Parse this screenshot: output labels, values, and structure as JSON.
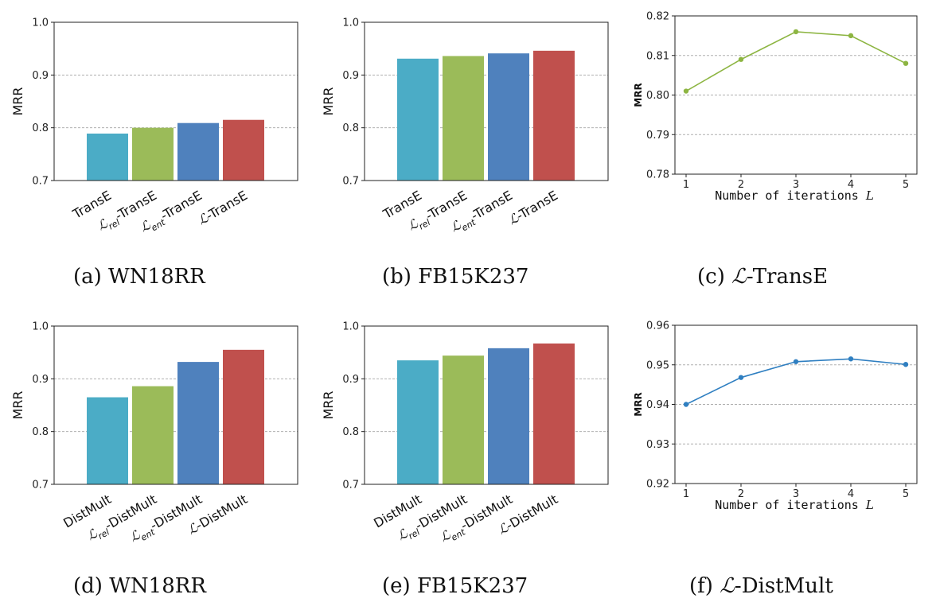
{
  "colors": {
    "cyan": "#4bacc6",
    "green": "#9bbb59",
    "blue": "#4f81bd",
    "red": "#c0504d",
    "line_green": "#8db542",
    "line_blue": "#2f7fc1"
  },
  "chart_data": [
    {
      "type": "bar",
      "caption": "(a) WN18RR",
      "ylabel": "MRR",
      "ylim": [
        0.7,
        1.0
      ],
      "yticks": [
        "0.7",
        "0.8",
        "0.9",
        "1.0"
      ],
      "grid": true,
      "categories": [
        "TransE",
        "ℒ_rel-TransE",
        "ℒ_ent-TransE",
        "ℒ-TransE"
      ],
      "values": [
        0.789,
        0.8,
        0.809,
        0.815
      ]
    },
    {
      "type": "bar",
      "caption": "(b) FB15K237",
      "ylabel": "MRR",
      "ylim": [
        0.7,
        1.0
      ],
      "yticks": [
        "0.7",
        "0.8",
        "0.9",
        "1.0"
      ],
      "grid": true,
      "categories": [
        "TransE",
        "ℒ_rel-TransE",
        "ℒ_ent-TransE",
        "ℒ-TransE"
      ],
      "values": [
        0.931,
        0.936,
        0.941,
        0.946
      ]
    },
    {
      "type": "line",
      "caption": "(c) ℒ-TransE",
      "ylabel": "MRR",
      "xlabel": "Number of iterations L",
      "ylim": [
        0.78,
        0.82
      ],
      "yticks": [
        "0.78",
        "0.79",
        "0.80",
        "0.81",
        "0.82"
      ],
      "grid": true,
      "x": [
        1,
        2,
        3,
        4,
        5
      ],
      "values": [
        0.801,
        0.809,
        0.816,
        0.815,
        0.808
      ]
    },
    {
      "type": "bar",
      "caption": "(d) WN18RR",
      "ylabel": "MRR",
      "ylim": [
        0.7,
        1.0
      ],
      "yticks": [
        "0.7",
        "0.8",
        "0.9",
        "1.0"
      ],
      "grid": true,
      "categories": [
        "DistMult",
        "ℒ_rel-DistMult",
        "ℒ_ent-DistMult",
        "ℒ-DistMult"
      ],
      "values": [
        0.865,
        0.886,
        0.932,
        0.955
      ]
    },
    {
      "type": "bar",
      "caption": "(e) FB15K237",
      "ylabel": "MRR",
      "ylim": [
        0.7,
        1.0
      ],
      "yticks": [
        "0.7",
        "0.8",
        "0.9",
        "1.0"
      ],
      "grid": true,
      "categories": [
        "DistMult",
        "ℒ_rel-DistMult",
        "ℒ_ent-DistMult",
        "ℒ-DistMult"
      ],
      "values": [
        0.935,
        0.944,
        0.958,
        0.967
      ]
    },
    {
      "type": "line",
      "caption": "(f) ℒ-DistMult",
      "ylabel": "MRR",
      "xlabel": "Number of iterations L",
      "ylim": [
        0.92,
        0.96
      ],
      "yticks": [
        "0.92",
        "0.93",
        "0.94",
        "0.95",
        "0.96"
      ],
      "grid": true,
      "x": [
        1,
        2,
        3,
        4,
        5
      ],
      "values": [
        0.94,
        0.9468,
        0.9508,
        0.9515,
        0.9501
      ]
    }
  ]
}
